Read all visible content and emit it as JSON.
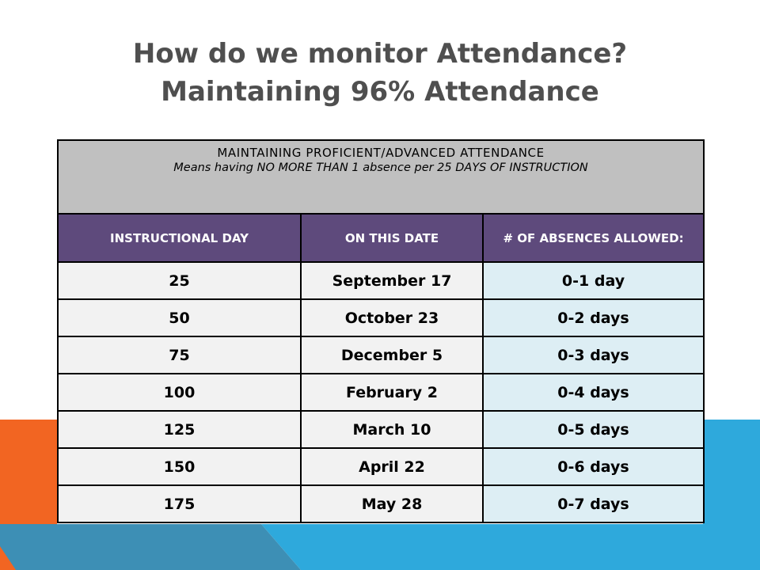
{
  "title": {
    "line1": "How do we monitor Attendance?",
    "line2": "Maintaining 96% Attendance"
  },
  "banner": {
    "heading": "MAINTAINING PROFICIENT/ADVANCED ATTENDANCE",
    "subtext": "Means having NO MORE THAN 1 absence per 25 DAYS OF INSTRUCTION"
  },
  "columns": [
    "INSTRUCTIONAL DAY",
    "ON THIS DATE",
    "# OF ABSENCES ALLOWED:"
  ],
  "rows": [
    {
      "day": "25",
      "date": "September 17",
      "allowed": "0-1 day"
    },
    {
      "day": "50",
      "date": "October 23",
      "allowed": "0-2 days"
    },
    {
      "day": "75",
      "date": "December 5",
      "allowed": "0-3 days"
    },
    {
      "day": "100",
      "date": "February 2",
      "allowed": "0-4 days"
    },
    {
      "day": "125",
      "date": "March 10",
      "allowed": "0-5 days"
    },
    {
      "day": "150",
      "date": "April 22",
      "allowed": "0-6 days"
    },
    {
      "day": "175",
      "date": "May 28",
      "allowed": "0-7 days"
    }
  ],
  "colors": {
    "title": "#4f4f4f",
    "banner_bg": "#c0c0c0",
    "header_bg": "#5e4a7c",
    "allowed_bg": "#ddeef4",
    "cell_bg": "#f2f2f2",
    "accent_orange": "#f26522",
    "accent_blue": "#2ea9dc",
    "accent_teal": "#3d8fb5"
  }
}
